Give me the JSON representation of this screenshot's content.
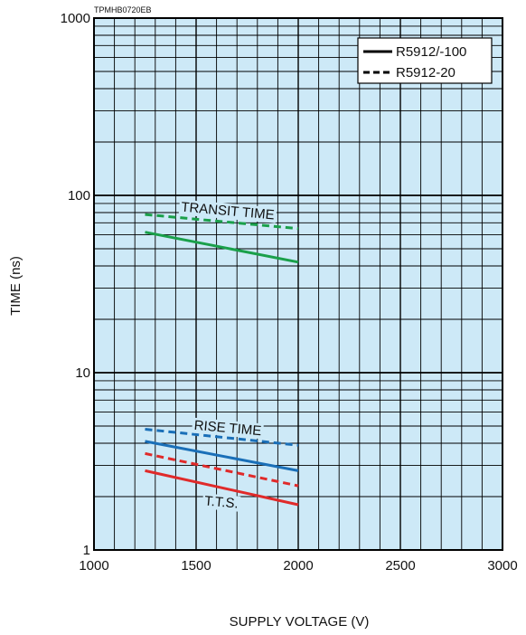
{
  "chart_data": {
    "type": "line",
    "tag": "TPMHB0720EB",
    "xlabel": "SUPPLY VOLTAGE (V)",
    "ylabel": "TIME (ns)",
    "xlim": [
      1000,
      3000
    ],
    "ylim": [
      1,
      1000
    ],
    "yscale": "log",
    "grid": true,
    "x_ticks": [
      "1000",
      "1500",
      "2000",
      "2500",
      "3000"
    ],
    "y_ticks": [
      "1",
      "10",
      "100",
      "1000"
    ],
    "plot_background": "#cde9f7",
    "legend": {
      "placement": "top-right",
      "entries": [
        {
          "label": "R5912/-100",
          "style": "solid"
        },
        {
          "label": "R5912-20",
          "style": "dashed"
        }
      ]
    },
    "annotations": [
      "TRANSIT TIME",
      "RISE TIME",
      "T.T.S."
    ],
    "series": [
      {
        "group": "TRANSIT TIME",
        "variant": "R5912/-100",
        "style": "solid",
        "color": "#1aa04a",
        "x": [
          1250,
          2000
        ],
        "y": [
          62,
          42
        ]
      },
      {
        "group": "TRANSIT TIME",
        "variant": "R5912-20",
        "style": "dashed",
        "color": "#1aa04a",
        "x": [
          1250,
          2000
        ],
        "y": [
          78,
          65
        ]
      },
      {
        "group": "RISE TIME",
        "variant": "R5912/-100",
        "style": "solid",
        "color": "#1a6fb8",
        "x": [
          1250,
          2000
        ],
        "y": [
          4.1,
          2.8
        ]
      },
      {
        "group": "RISE TIME",
        "variant": "R5912-20",
        "style": "dashed",
        "color": "#1a6fb8",
        "x": [
          1250,
          2000
        ],
        "y": [
          4.8,
          3.9
        ]
      },
      {
        "group": "T.T.S.",
        "variant": "R5912/-100",
        "style": "solid",
        "color": "#e02a2a",
        "x": [
          1250,
          2000
        ],
        "y": [
          2.8,
          1.8
        ]
      },
      {
        "group": "T.T.S.",
        "variant": "R5912-20",
        "style": "dashed",
        "color": "#e02a2a",
        "x": [
          1250,
          2000
        ],
        "y": [
          3.5,
          2.3
        ]
      }
    ]
  }
}
